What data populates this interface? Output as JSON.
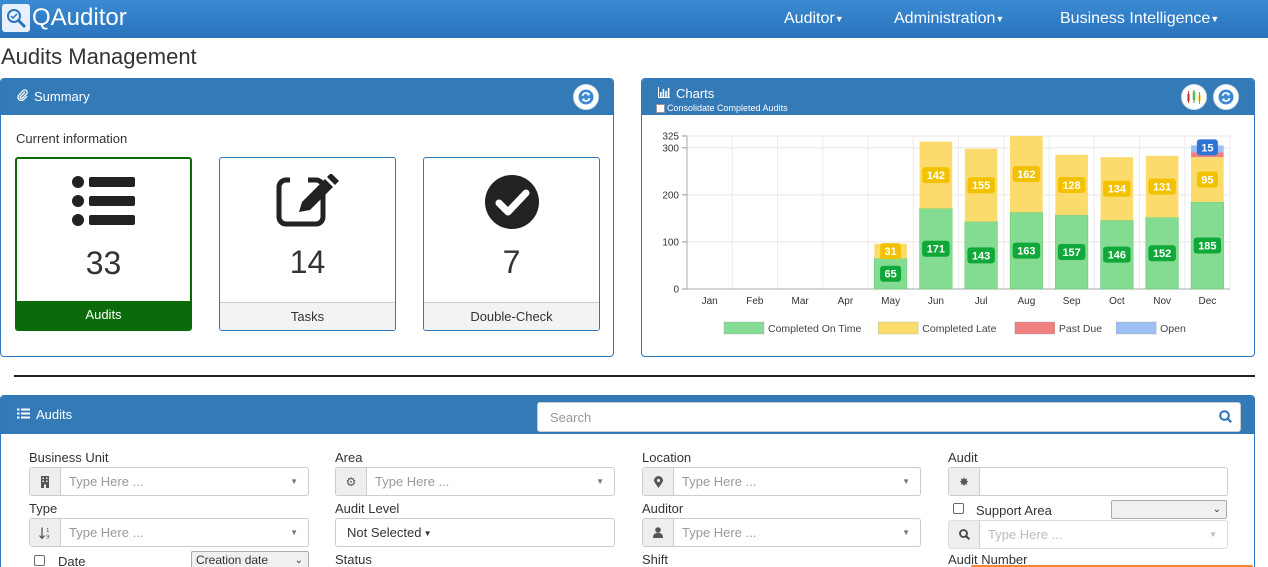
{
  "brand": {
    "name": "QAuditor"
  },
  "nav": {
    "auditor": "Auditor",
    "administration": "Administration",
    "business_intelligence": "Business Intelligence"
  },
  "page": {
    "title": "Audits Management"
  },
  "summary": {
    "title": "Summary",
    "current_info": "Current information",
    "cards": [
      {
        "count": "33",
        "label": "Audits"
      },
      {
        "count": "14",
        "label": "Tasks"
      },
      {
        "count": "7",
        "label": "Double-Check"
      }
    ]
  },
  "charts": {
    "title": "Charts",
    "consolidate_label": "Consolidate Completed Audits"
  },
  "chart_data": {
    "type": "bar",
    "stacked": true,
    "categories": [
      "Jan",
      "Feb",
      "Mar",
      "Apr",
      "May",
      "Jun",
      "Jul",
      "Aug",
      "Sep",
      "Oct",
      "Nov",
      "Dec"
    ],
    "series": [
      {
        "name": "Completed On Time",
        "color": "#84dc92",
        "values": [
          0,
          0,
          0,
          0,
          65,
          171,
          143,
          163,
          157,
          146,
          152,
          185
        ]
      },
      {
        "name": "Completed Late",
        "color": "#fbdb6c",
        "values": [
          0,
          0,
          0,
          0,
          31,
          142,
          155,
          162,
          128,
          134,
          131,
          95
        ]
      },
      {
        "name": "Past Due",
        "color": "#f07f7f",
        "values": [
          0,
          0,
          0,
          0,
          0,
          0,
          0,
          0,
          0,
          0,
          0,
          10
        ]
      },
      {
        "name": "Open",
        "color": "#9cc0f4",
        "values": [
          0,
          0,
          0,
          0,
          0,
          0,
          0,
          0,
          0,
          0,
          0,
          15
        ]
      }
    ],
    "yticks": [
      0,
      100,
      200,
      300,
      325
    ],
    "ylim": [
      0,
      325
    ],
    "grid": true,
    "legend": "bottom"
  },
  "audits": {
    "title": "Audits",
    "search_placeholder": "Search",
    "filters": {
      "business_unit": "Business Unit",
      "area": "Area",
      "location": "Location",
      "audit": "Audit",
      "type": "Type",
      "audit_level": "Audit Level",
      "auditor": "Auditor",
      "support_area": "Support Area",
      "date": "Date",
      "status": "Status",
      "shift": "Shift",
      "audit_number": "Audit Number",
      "type_here": "Type Here ...",
      "not_selected": "Not Selected",
      "date_select": "Creation date"
    }
  }
}
